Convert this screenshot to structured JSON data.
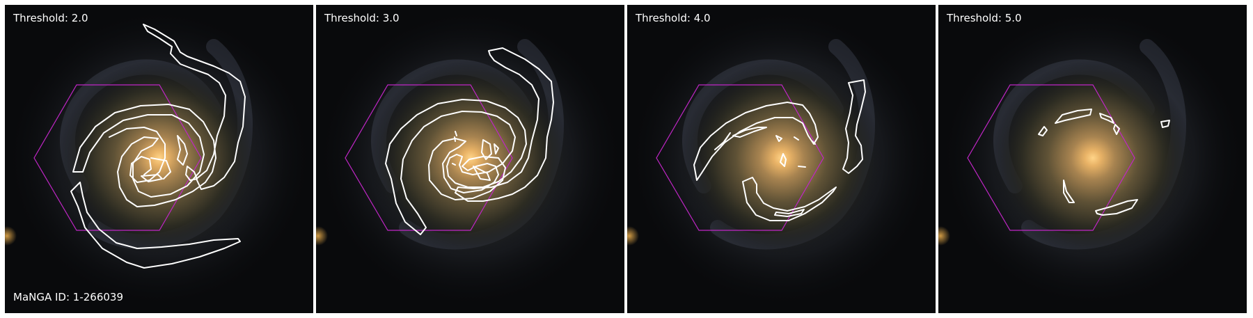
{
  "panels": [
    {
      "threshold_label": "Threshold: 2.0"
    },
    {
      "threshold_label": "Threshold: 3.0"
    },
    {
      "threshold_label": "Threshold: 4.0"
    },
    {
      "threshold_label": "Threshold: 5.0"
    }
  ],
  "manga_id_label": "MaNGA ID: 1-266039",
  "colors": {
    "contour": "#ffffff",
    "ifu_hexagon": "#c026c6",
    "galaxy_core": "#f6c270",
    "background": "#090a0c"
  }
}
